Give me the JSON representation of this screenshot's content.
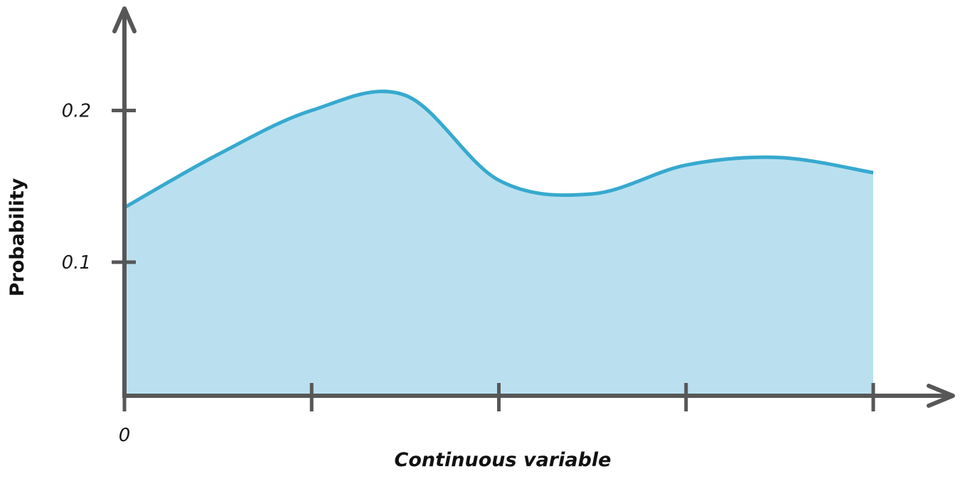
{
  "chart_data": {
    "type": "area",
    "title": "",
    "xlabel": "Continuous variable",
    "ylabel": "Probability",
    "x": [
      0,
      0.5,
      1,
      1.5,
      2,
      2.5,
      3,
      3.5,
      4
    ],
    "values": [
      0.136,
      0.171,
      0.2,
      0.21,
      0.154,
      0.145,
      0.164,
      0.169,
      0.159
    ],
    "xlim": [
      0,
      4
    ],
    "ylim": [
      0.012,
      0.24
    ],
    "x_ticks": [
      0,
      1,
      2,
      3,
      4
    ],
    "x_tick_labels": [
      "0",
      "",
      "",
      "",
      ""
    ],
    "y_ticks": [
      0.1,
      0.2
    ],
    "y_tick_labels": [
      "0.1",
      "0.2"
    ],
    "grid": false,
    "legend": "none",
    "colors": {
      "line": "#37a9cf",
      "fill": "#bae0ef",
      "axis": "#575757"
    }
  }
}
